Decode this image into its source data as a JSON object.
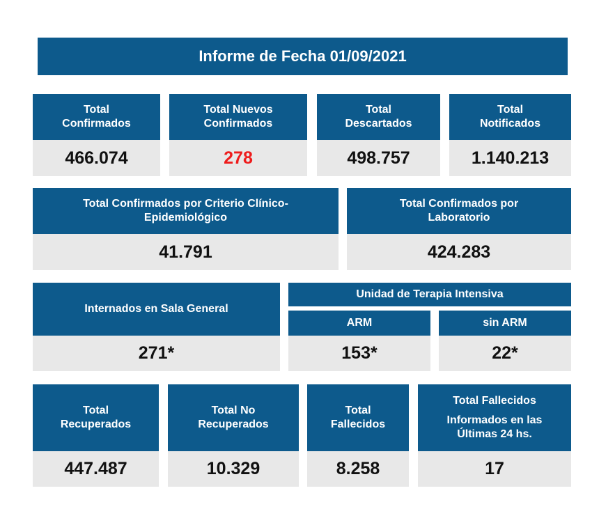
{
  "report": {
    "title": "Informe de Fecha 01/09/2021"
  },
  "row1": [
    {
      "label_l1": "Total",
      "label_l2": "Confirmados",
      "value": "466.074"
    },
    {
      "label_l1": "Total Nuevos",
      "label_l2": "Confirmados",
      "value": "278",
      "value_color": "#ee1c1c"
    },
    {
      "label_l1": "Total",
      "label_l2": "Descartados",
      "value": "498.757"
    },
    {
      "label_l1": "Total",
      "label_l2": "Notificados",
      "value": "1.140.213"
    }
  ],
  "row2": [
    {
      "label_l1": "Total Confirmados por Criterio Clínico-",
      "label_l2": "Epidemiológico",
      "value": "41.791"
    },
    {
      "label_l1": "Total Confirmados por",
      "label_l2": "Laboratorio",
      "value": "424.283"
    }
  ],
  "row3": {
    "sala_general": {
      "label": "Internados en Sala General",
      "value": "271*"
    },
    "uti": {
      "label": "Unidad de Terapia Intensiva",
      "arm": {
        "label": "ARM",
        "value": "153*"
      },
      "sin_arm": {
        "label": "sin ARM",
        "value": "22*"
      }
    }
  },
  "row4": [
    {
      "label_l1": "Total",
      "label_l2": "Recuperados",
      "value": "447.487"
    },
    {
      "label_l1": "Total No",
      "label_l2": "Recuperados",
      "value": "10.329"
    },
    {
      "label_l1": "Total",
      "label_l2": "Fallecidos",
      "value": "8.258"
    },
    {
      "label_l1": "Total Fallecidos",
      "label_l2": "Informados en las",
      "label_l3": "Últimas 24 hs.",
      "value": "17"
    }
  ],
  "colors": {
    "header_bg": "#0d5a8c",
    "value_bg": "#e8e8e8",
    "highlight": "#ee1c1c"
  }
}
